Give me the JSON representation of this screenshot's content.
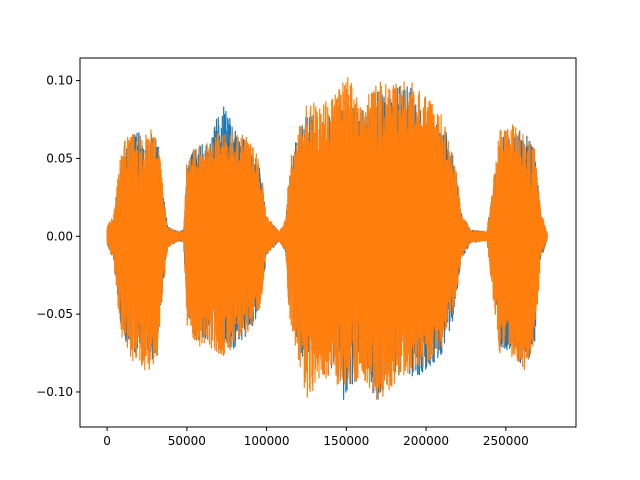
{
  "chart_data": {
    "type": "line",
    "title": "",
    "xlabel": "",
    "ylabel": "",
    "xlim": [
      -17000,
      294000
    ],
    "ylim": [
      -0.1225,
      0.1145
    ],
    "x_ticks": [
      0,
      50000,
      100000,
      150000,
      200000,
      250000
    ],
    "x_tick_labels": [
      "0",
      "50000",
      "100000",
      "150000",
      "200000",
      "250000"
    ],
    "y_ticks": [
      -0.1,
      -0.05,
      0.0,
      0.05,
      0.1
    ],
    "y_tick_labels": [
      "−0.10",
      "−0.05",
      "0.00",
      "0.05",
      "0.10"
    ],
    "grid": false,
    "legend": "none",
    "series": [
      {
        "color": "#1f77b4",
        "envelope": [
          [
            0,
            0.006,
            -0.006
          ],
          [
            4000,
            0.012,
            -0.015
          ],
          [
            8000,
            0.045,
            -0.055
          ],
          [
            12000,
            0.06,
            -0.07
          ],
          [
            20000,
            0.068,
            -0.08
          ],
          [
            28000,
            0.066,
            -0.082
          ],
          [
            32000,
            0.06,
            -0.07
          ],
          [
            35000,
            0.03,
            -0.035
          ],
          [
            38000,
            0.006,
            -0.007
          ],
          [
            45000,
            0.003,
            -0.003
          ],
          [
            48000,
            0.004,
            -0.004
          ],
          [
            50000,
            0.045,
            -0.055
          ],
          [
            55000,
            0.058,
            -0.068
          ],
          [
            65000,
            0.06,
            -0.066
          ],
          [
            72000,
            0.09,
            -0.075
          ],
          [
            80000,
            0.068,
            -0.072
          ],
          [
            90000,
            0.06,
            -0.062
          ],
          [
            96000,
            0.045,
            -0.045
          ],
          [
            100000,
            0.012,
            -0.012
          ],
          [
            108000,
            0.003,
            -0.003
          ],
          [
            112000,
            0.01,
            -0.01
          ],
          [
            114000,
            0.04,
            -0.045
          ],
          [
            118000,
            0.06,
            -0.065
          ],
          [
            125000,
            0.08,
            -0.085
          ],
          [
            135000,
            0.075,
            -0.08
          ],
          [
            145000,
            0.08,
            -0.09
          ],
          [
            150000,
            0.085,
            -0.113
          ],
          [
            160000,
            0.08,
            -0.085
          ],
          [
            170000,
            0.095,
            -0.108
          ],
          [
            180000,
            0.095,
            -0.09
          ],
          [
            190000,
            0.1,
            -0.09
          ],
          [
            200000,
            0.08,
            -0.088
          ],
          [
            210000,
            0.075,
            -0.075
          ],
          [
            218000,
            0.05,
            -0.05
          ],
          [
            222000,
            0.015,
            -0.015
          ],
          [
            228000,
            0.004,
            -0.004
          ],
          [
            238000,
            0.003,
            -0.003
          ],
          [
            242000,
            0.03,
            -0.035
          ],
          [
            246000,
            0.065,
            -0.07
          ],
          [
            255000,
            0.068,
            -0.078
          ],
          [
            262000,
            0.07,
            -0.085
          ],
          [
            268000,
            0.055,
            -0.07
          ],
          [
            272000,
            0.015,
            -0.015
          ],
          [
            276000,
            0.002,
            -0.002
          ]
        ]
      },
      {
        "color": "#ff7f0e",
        "envelope": [
          [
            0,
            0.007,
            -0.006
          ],
          [
            4000,
            0.013,
            -0.014
          ],
          [
            8000,
            0.05,
            -0.06
          ],
          [
            12000,
            0.065,
            -0.075
          ],
          [
            20000,
            0.066,
            -0.085
          ],
          [
            28000,
            0.07,
            -0.088
          ],
          [
            32000,
            0.062,
            -0.075
          ],
          [
            35000,
            0.032,
            -0.036
          ],
          [
            38000,
            0.006,
            -0.007
          ],
          [
            45000,
            0.003,
            -0.003
          ],
          [
            48000,
            0.004,
            -0.004
          ],
          [
            50000,
            0.05,
            -0.06
          ],
          [
            55000,
            0.06,
            -0.07
          ],
          [
            65000,
            0.062,
            -0.072
          ],
          [
            72000,
            0.07,
            -0.078
          ],
          [
            80000,
            0.068,
            -0.07
          ],
          [
            90000,
            0.062,
            -0.06
          ],
          [
            96000,
            0.048,
            -0.046
          ],
          [
            100000,
            0.013,
            -0.012
          ],
          [
            108000,
            0.003,
            -0.003
          ],
          [
            112000,
            0.011,
            -0.01
          ],
          [
            114000,
            0.045,
            -0.05
          ],
          [
            118000,
            0.062,
            -0.07
          ],
          [
            125000,
            0.085,
            -0.107
          ],
          [
            135000,
            0.09,
            -0.09
          ],
          [
            145000,
            0.095,
            -0.098
          ],
          [
            150000,
            0.105,
            -0.1
          ],
          [
            160000,
            0.085,
            -0.09
          ],
          [
            170000,
            0.1,
            -0.107
          ],
          [
            180000,
            0.098,
            -0.095
          ],
          [
            190000,
            0.1,
            -0.088
          ],
          [
            200000,
            0.09,
            -0.082
          ],
          [
            210000,
            0.078,
            -0.072
          ],
          [
            218000,
            0.052,
            -0.048
          ],
          [
            222000,
            0.016,
            -0.014
          ],
          [
            228000,
            0.004,
            -0.004
          ],
          [
            238000,
            0.003,
            -0.003
          ],
          [
            242000,
            0.035,
            -0.04
          ],
          [
            246000,
            0.068,
            -0.075
          ],
          [
            255000,
            0.072,
            -0.08
          ],
          [
            262000,
            0.065,
            -0.088
          ],
          [
            268000,
            0.058,
            -0.072
          ],
          [
            272000,
            0.016,
            -0.015
          ],
          [
            276000,
            0.002,
            -0.002
          ]
        ]
      }
    ]
  }
}
